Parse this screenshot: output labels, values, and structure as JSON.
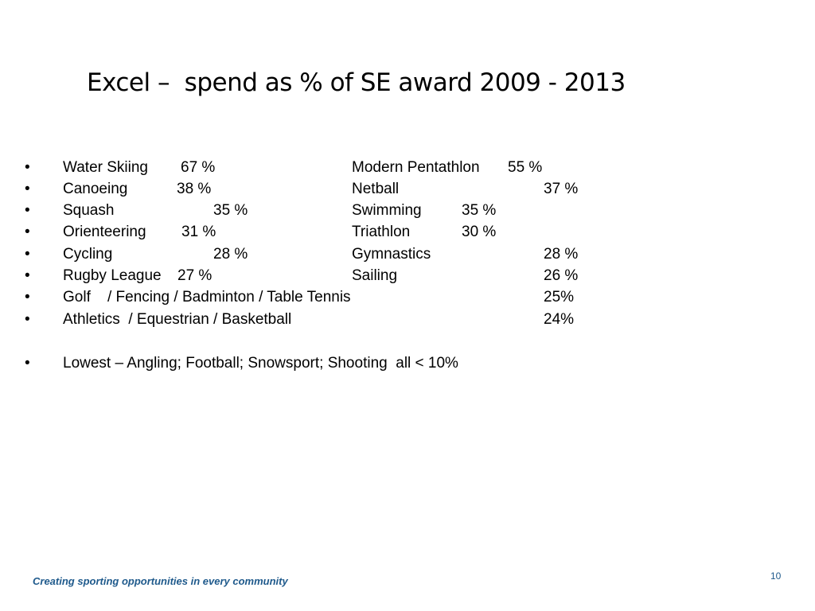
{
  "slide": {
    "title": "Excel –  spend as % of SE award 2009 - 2013",
    "bullet_symbol": "•",
    "rows": [
      {
        "left_name": "Water Skiing",
        "left_value": "67 %",
        "right_name": "Modern Pentathlon",
        "right_value": "55 %"
      },
      {
        "left_name": "Canoeing",
        "left_value": "38 %",
        "right_name": "Netball",
        "right_value": "37 %"
      },
      {
        "left_name": "Squash",
        "left_value": "35 %",
        "right_name": "Swimming",
        "right_value": "35 %"
      },
      {
        "left_name": "Orienteering",
        "left_value": "31 %",
        "right_name": "Triathlon",
        "right_value": "30 %"
      },
      {
        "left_name": "Cycling",
        "left_value": "28 %",
        "right_name": "Gymnastics",
        "right_value": "28 %"
      },
      {
        "left_name": "Rugby League",
        "left_value": "27 %",
        "right_name": "Sailing",
        "right_value": "26 %"
      },
      {
        "left_name": "Golf    / Fencing / Badminton / Table Tennis",
        "right_value": "25%"
      },
      {
        "left_name": "Athletics  / Equestrian / Basketball",
        "right_value": "24%"
      }
    ],
    "lowest": "Lowest – Angling; Football; Snowsport; Shooting  all < 10%"
  },
  "footer": {
    "tagline": "Creating sporting opportunities in every community",
    "page_number": "10"
  }
}
